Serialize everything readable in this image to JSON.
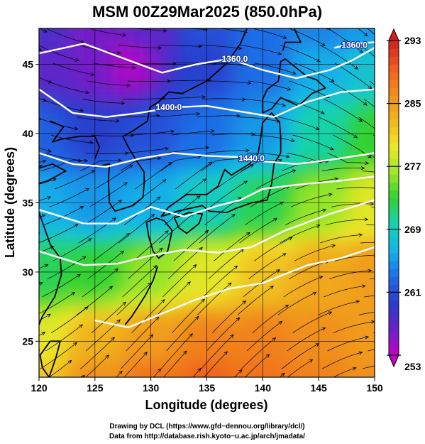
{
  "chart_data": {
    "type": "heatmap",
    "title": "MSM 00Z29Mar2025 (850.0hPa)",
    "xlabel": "Longitude (degrees)",
    "ylabel": "Latitude  (degrees)",
    "xlim": [
      120,
      150
    ],
    "ylim": [
      22.4,
      47.6
    ],
    "xticks": [
      120,
      125,
      130,
      135,
      140,
      145,
      150
    ],
    "yticks": [
      25,
      30,
      35,
      40,
      45
    ],
    "grid": true,
    "colorbar": {
      "min": 253,
      "max": 293,
      "ticks": [
        253,
        261,
        269,
        277,
        285,
        293
      ],
      "colors": [
        "#c400c4",
        "#6a22c8",
        "#2a3ccc",
        "#1e6ee6",
        "#14b4e8",
        "#14d2b4",
        "#32d232",
        "#a0e628",
        "#f0e628",
        "#f0b41e",
        "#f08c1e",
        "#f05a1e",
        "#d21e1e"
      ]
    },
    "temperature_field": {
      "description_fields": [
        "lon",
        "lat",
        "value"
      ],
      "points": [
        [
          120,
          47.6,
          258
        ],
        [
          125,
          47.6,
          256
        ],
        [
          130,
          47.6,
          257
        ],
        [
          135,
          47.6,
          261
        ],
        [
          140,
          47.6,
          263
        ],
        [
          145,
          47.6,
          264
        ],
        [
          150,
          47.6,
          265
        ],
        [
          120,
          45,
          257
        ],
        [
          125,
          45,
          256
        ],
        [
          128,
          45,
          254
        ],
        [
          135,
          45,
          260
        ],
        [
          140,
          45,
          263
        ],
        [
          145,
          45,
          266
        ],
        [
          150,
          45,
          268
        ],
        [
          120,
          40,
          262
        ],
        [
          125,
          40,
          260
        ],
        [
          130,
          40,
          261
        ],
        [
          135,
          40,
          263
        ],
        [
          140,
          40,
          265
        ],
        [
          145,
          40,
          270
        ],
        [
          150,
          40,
          273
        ],
        [
          120,
          35,
          266
        ],
        [
          125,
          35,
          265
        ],
        [
          130,
          35,
          266
        ],
        [
          135,
          35,
          269
        ],
        [
          140,
          35,
          272
        ],
        [
          145,
          35,
          276
        ],
        [
          150,
          35,
          279
        ],
        [
          120,
          30,
          272
        ],
        [
          125,
          30,
          273
        ],
        [
          130,
          30,
          276
        ],
        [
          135,
          30,
          279
        ],
        [
          140,
          30,
          282
        ],
        [
          145,
          30,
          284
        ],
        [
          150,
          30,
          285
        ],
        [
          120,
          25,
          279
        ],
        [
          125,
          25,
          283
        ],
        [
          130,
          25,
          285
        ],
        [
          135,
          25,
          287
        ],
        [
          140,
          25,
          287
        ],
        [
          145,
          25,
          286
        ],
        [
          150,
          25,
          285
        ],
        [
          120,
          22.4,
          282
        ],
        [
          125,
          22.4,
          286
        ],
        [
          130,
          22.4,
          288
        ],
        [
          135,
          22.4,
          289
        ],
        [
          140,
          22.4,
          288
        ],
        [
          145,
          22.4,
          287
        ],
        [
          150,
          22.4,
          286
        ]
      ]
    },
    "contours": [
      {
        "label": "1360.0",
        "label_lon": 137.5,
        "label_lat": 45.4,
        "path": [
          [
            120,
            45.8
          ],
          [
            124,
            46.5
          ],
          [
            128,
            45.3
          ],
          [
            131,
            44.4
          ],
          [
            134,
            45.0
          ],
          [
            137,
            45.4
          ],
          [
            140,
            44.6
          ],
          [
            143,
            44.0
          ],
          [
            146,
            44.6
          ],
          [
            148,
            45.3
          ],
          [
            150,
            46.2
          ]
        ]
      },
      {
        "label": "1360.0",
        "label_lon": 148.2,
        "label_lat": 46.4,
        "path": [
          [
            146.4,
            46.2
          ],
          [
            148,
            46.5
          ],
          [
            150,
            46.6
          ]
        ]
      },
      {
        "label": "1400.0",
        "label_lon": 131.6,
        "label_lat": 41.9,
        "path": [
          [
            120,
            43.2
          ],
          [
            123,
            41.5
          ],
          [
            126,
            41.2
          ],
          [
            129,
            41.5
          ],
          [
            132,
            41.9
          ],
          [
            135,
            42.0
          ],
          [
            138,
            41.6
          ],
          [
            141,
            41.2
          ],
          [
            144,
            42.3
          ],
          [
            147,
            43.0
          ],
          [
            150,
            43.2
          ]
        ]
      },
      {
        "label": "1440.0",
        "label_lon": 139.0,
        "label_lat": 38.2,
        "path": [
          [
            120,
            38.6
          ],
          [
            123,
            37.8
          ],
          [
            126,
            37.6
          ],
          [
            129,
            38.2
          ],
          [
            132,
            38.6
          ],
          [
            135,
            38.4
          ],
          [
            138,
            38.3
          ],
          [
            140,
            38.0
          ],
          [
            143,
            37.8
          ],
          [
            146,
            38.1
          ],
          [
            150,
            38.6
          ]
        ]
      },
      {
        "label": "",
        "label_lon": 0,
        "label_lat": 0,
        "path": [
          [
            120,
            34.5
          ],
          [
            124,
            33.5
          ],
          [
            127,
            33.5
          ],
          [
            130,
            34.7
          ],
          [
            133,
            34.0
          ],
          [
            136,
            34.8
          ],
          [
            138,
            35.2
          ],
          [
            140,
            36.0
          ],
          [
            143,
            36.3
          ],
          [
            147,
            36.6
          ],
          [
            150,
            36.9
          ]
        ]
      },
      {
        "label": "",
        "label_lon": 0,
        "label_lat": 0,
        "path": [
          [
            120,
            31.5
          ],
          [
            124,
            30.5
          ],
          [
            127,
            30.6
          ],
          [
            130,
            31.2
          ],
          [
            133,
            31.6
          ],
          [
            136,
            31.4
          ],
          [
            139,
            31.8
          ],
          [
            142,
            33.0
          ],
          [
            146,
            34.2
          ],
          [
            150,
            35.2
          ]
        ]
      },
      {
        "label": "",
        "label_lon": 0,
        "label_lat": 0,
        "path": [
          [
            125,
            26.5
          ],
          [
            128,
            26.0
          ],
          [
            131,
            27.0
          ],
          [
            134,
            28.0
          ],
          [
            137,
            28.8
          ],
          [
            140,
            29.2
          ],
          [
            144,
            30.5
          ],
          [
            147,
            31.0
          ],
          [
            150,
            31.8
          ]
        ]
      }
    ],
    "coastlines": [
      {
        "name": "kyushu",
        "path": [
          [
            129.6,
            33.6
          ],
          [
            130.5,
            33.9
          ],
          [
            131.2,
            33.7
          ],
          [
            131.9,
            33.0
          ],
          [
            131.5,
            31.5
          ],
          [
            130.7,
            31.0
          ],
          [
            130.2,
            31.5
          ],
          [
            129.8,
            32.6
          ],
          [
            129.6,
            33.6
          ]
        ]
      },
      {
        "name": "shikoku",
        "path": [
          [
            132.1,
            33.9
          ],
          [
            133.4,
            34.3
          ],
          [
            134.6,
            34.2
          ],
          [
            134.3,
            33.5
          ],
          [
            133.2,
            32.8
          ],
          [
            132.5,
            33.2
          ],
          [
            132.1,
            33.9
          ]
        ]
      },
      {
        "name": "honshu",
        "path": [
          [
            130.9,
            34.0
          ],
          [
            132.4,
            34.4
          ],
          [
            134.6,
            34.8
          ],
          [
            135.2,
            34.4
          ],
          [
            136.8,
            34.3
          ],
          [
            137.6,
            34.6
          ],
          [
            139.0,
            35.0
          ],
          [
            140.4,
            35.2
          ],
          [
            140.8,
            36.4
          ],
          [
            141.0,
            37.8
          ],
          [
            141.6,
            38.6
          ],
          [
            141.6,
            39.8
          ],
          [
            141.5,
            40.8
          ],
          [
            140.8,
            41.5
          ],
          [
            140.0,
            40.8
          ],
          [
            139.8,
            39.6
          ],
          [
            139.6,
            38.6
          ],
          [
            138.8,
            37.8
          ],
          [
            137.2,
            37.0
          ],
          [
            136.6,
            37.4
          ],
          [
            136.0,
            36.2
          ],
          [
            135.0,
            35.6
          ],
          [
            133.2,
            35.6
          ],
          [
            131.6,
            34.7
          ],
          [
            130.9,
            34.0
          ]
        ]
      },
      {
        "name": "hokkaido",
        "path": [
          [
            140.0,
            41.5
          ],
          [
            140.8,
            41.8
          ],
          [
            141.6,
            42.6
          ],
          [
            143.2,
            42.0
          ],
          [
            144.4,
            42.9
          ],
          [
            145.6,
            43.3
          ],
          [
            144.8,
            43.9
          ],
          [
            144.0,
            44.1
          ],
          [
            142.0,
            45.4
          ],
          [
            141.6,
            45.2
          ],
          [
            141.4,
            43.8
          ],
          [
            140.4,
            43.2
          ],
          [
            140.0,
            42.5
          ],
          [
            140.0,
            41.5
          ]
        ]
      },
      {
        "name": "sakhalin",
        "path": [
          [
            141.8,
            46.0
          ],
          [
            142.0,
            46.6
          ],
          [
            143.4,
            46.6
          ],
          [
            142.8,
            47.6
          ]
        ]
      },
      {
        "name": "korea",
        "path": [
          [
            125.0,
            37.6
          ],
          [
            126.3,
            37.8
          ],
          [
            126.2,
            36.6
          ],
          [
            126.3,
            35.0
          ],
          [
            126.8,
            34.4
          ],
          [
            128.4,
            34.8
          ],
          [
            129.3,
            35.4
          ],
          [
            129.4,
            36.4
          ],
          [
            129.4,
            37.2
          ],
          [
            128.6,
            38.2
          ],
          [
            128.0,
            39.0
          ],
          [
            127.5,
            39.8
          ],
          [
            128.4,
            40.2
          ],
          [
            129.7,
            40.9
          ],
          [
            129.9,
            41.9
          ],
          [
            130.7,
            42.3
          ]
        ]
      },
      {
        "name": "china-coast",
        "path": [
          [
            121.0,
            40.9
          ],
          [
            122.2,
            40.5
          ],
          [
            121.2,
            39.4
          ],
          [
            122.0,
            39.6
          ],
          [
            123.6,
            39.8
          ],
          [
            125.0,
            39.8
          ],
          [
            125.4,
            39.0
          ],
          [
            125.0,
            38.2
          ]
        ]
      },
      {
        "name": "shandong",
        "path": [
          [
            120.0,
            36.4
          ],
          [
            120.8,
            36.6
          ],
          [
            122.4,
            37.3
          ],
          [
            121.2,
            37.8
          ],
          [
            120.0,
            37.5
          ]
        ]
      },
      {
        "name": "china-east",
        "path": [
          [
            120.0,
            34.3
          ],
          [
            121.0,
            32.0
          ],
          [
            121.9,
            31.0
          ],
          [
            122.0,
            29.8
          ],
          [
            121.4,
            28.2
          ],
          [
            120.3,
            26.8
          ],
          [
            120.0,
            26.2
          ]
        ]
      },
      {
        "name": "russia-coast",
        "path": [
          [
            130.7,
            42.3
          ],
          [
            131.6,
            43.0
          ],
          [
            132.8,
            42.9
          ],
          [
            135.0,
            43.8
          ],
          [
            136.8,
            45.1
          ],
          [
            138.0,
            46.5
          ],
          [
            138.6,
            47.6
          ]
        ]
      },
      {
        "name": "taiwan",
        "path": [
          [
            121.0,
            25.0
          ],
          [
            121.9,
            25.0
          ],
          [
            121.5,
            23.8
          ],
          [
            120.9,
            22.4
          ],
          [
            120.3,
            23.1
          ],
          [
            120.1,
            24.0
          ],
          [
            121.0,
            25.0
          ]
        ]
      },
      {
        "name": "ryukyu",
        "path": [
          [
            127.7,
            26.2
          ],
          [
            128.3,
            26.8
          ],
          [
            129.5,
            28.3
          ],
          [
            130.2,
            29.4
          ],
          [
            130.6,
            30.4
          ]
        ]
      }
    ]
  },
  "footer": {
    "line1": "Drawing by DCL (https://www.gfd−dennou.org/library/dcl/)",
    "line2": "Data from http://database.rish.kyoto−u.ac.jp/arch/jmadata/"
  }
}
